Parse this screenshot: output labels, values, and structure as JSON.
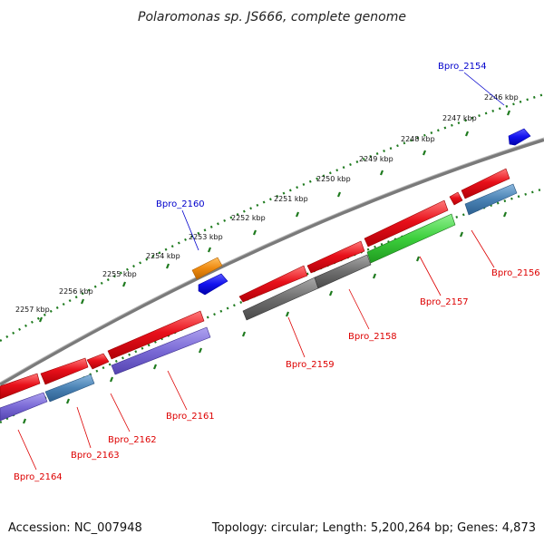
{
  "title": "Polaromonas sp. JS666, complete genome",
  "footer": {
    "accession": "Accession: NC_007948",
    "summary": "Topology: circular; Length: 5,200,264 bp; Genes: 4,873"
  },
  "colors": {
    "background": "#ffffff",
    "backbone": "#8a8a8a",
    "ruler": "#1e7a1e",
    "label_forward": "#0000cc",
    "label_reverse": "#dd0000",
    "red": "#e8101a",
    "blue": "#1212ee",
    "orange": "#ee8a10",
    "green": "#3ccf3c",
    "gray": "#6e6e6e",
    "steelblue": "#4a82b4",
    "purple": "#7a6ad6"
  },
  "kbp_labels": [
    "2257 kbp",
    "2256 kbp",
    "2255 kbp",
    "2254 kbp",
    "2253 kbp",
    "2252 kbp",
    "2251 kbp",
    "2250 kbp",
    "2249 kbp",
    "2248 kbp",
    "2247 kbp",
    "2246 kbp"
  ],
  "gene_labels": {
    "forward": [
      "Bpro_2154",
      "Bpro_2160"
    ],
    "reverse": [
      "Bpro_2156",
      "Bpro_2157",
      "Bpro_2158",
      "Bpro_2159",
      "Bpro_2161",
      "Bpro_2162",
      "Bpro_2163",
      "Bpro_2164"
    ]
  }
}
